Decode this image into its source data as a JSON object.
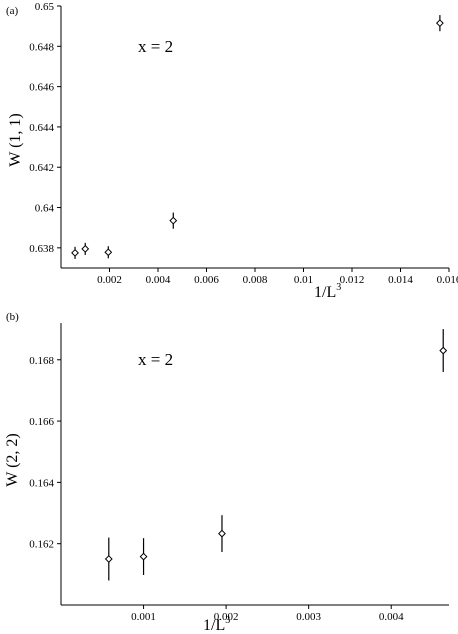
{
  "chart_data": [
    {
      "type": "scatter",
      "panel_label": "(a)",
      "annotation": "x = 2",
      "xlabel": "1/L",
      "xlabel_sup": "3",
      "ylabel": "W (1, 1)",
      "xlim": [
        0,
        0.016
      ],
      "ylim": [
        0.637,
        0.65
      ],
      "x_ticks": [
        0.002,
        0.004,
        0.006,
        0.008,
        0.01,
        0.012,
        0.014,
        0.016
      ],
      "x_tick_labels": [
        "0.002",
        "0.004",
        "0.006",
        "0.008",
        "0.01",
        "0.012",
        "0.014",
        "0.016"
      ],
      "y_ticks": [
        0.638,
        0.64,
        0.642,
        0.644,
        0.646,
        0.648,
        0.65
      ],
      "y_tick_labels": [
        "0.638",
        "0.64",
        "0.642",
        "0.644",
        "0.646",
        "0.648",
        "0.65"
      ],
      "grid": false,
      "points": [
        {
          "x": 0.000579,
          "y": 0.63775,
          "err": 0.0003
        },
        {
          "x": 0.001,
          "y": 0.63795,
          "err": 0.0003
        },
        {
          "x": 0.00195,
          "y": 0.63778,
          "err": 0.0003
        },
        {
          "x": 0.00463,
          "y": 0.63935,
          "err": 0.0004
        },
        {
          "x": 0.015625,
          "y": 0.64915,
          "err": 0.0004
        }
      ]
    },
    {
      "type": "scatter",
      "panel_label": "(b)",
      "annotation": "x = 2",
      "xlabel": "1/L",
      "xlabel_sup": "3",
      "ylabel": "W (2, 2)",
      "xlim": [
        0,
        0.0047
      ],
      "ylim": [
        0.16,
        0.1692
      ],
      "x_ticks": [
        0.001,
        0.002,
        0.003,
        0.004
      ],
      "x_tick_labels": [
        "0.001",
        "0.002",
        "0.003",
        "0.004"
      ],
      "y_ticks": [
        0.162,
        0.164,
        0.166,
        0.168
      ],
      "y_tick_labels": [
        "0.162",
        "0.164",
        "0.166",
        "0.168"
      ],
      "grid": false,
      "points": [
        {
          "x": 0.000579,
          "y": 0.1615,
          "err": 0.0007
        },
        {
          "x": 0.001,
          "y": 0.16158,
          "err": 0.0006
        },
        {
          "x": 0.00195,
          "y": 0.16233,
          "err": 0.0006
        },
        {
          "x": 0.00463,
          "y": 0.1683,
          "err": 0.0007
        }
      ]
    }
  ]
}
